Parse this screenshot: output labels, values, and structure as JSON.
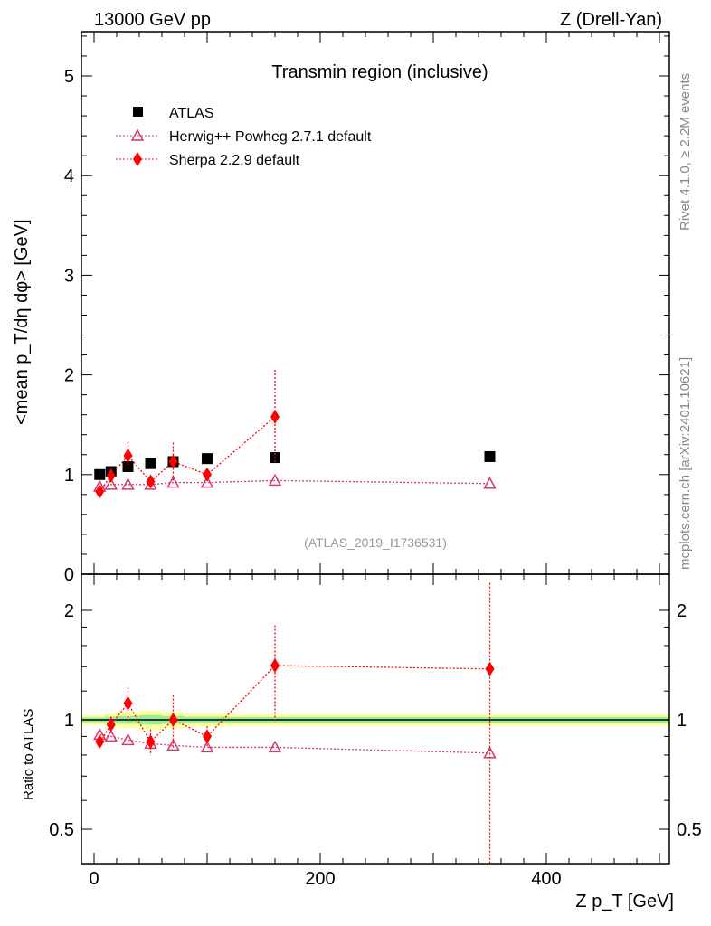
{
  "header": {
    "left": "13000 GeV pp",
    "right": "Z (Drell-Yan)"
  },
  "side": {
    "rivet": "Rivet 4.1.0, ≥ 2.2M events",
    "mcplots": "mcplots.cern.ch [arXiv:2401.10621]"
  },
  "chart_data": [
    {
      "type": "scatter",
      "title": "Transmin region (inclusive)",
      "ylabel": "<mean p_T/dη dφ> [GeV]",
      "xlim": [
        -11,
        509
      ],
      "ylim": [
        0,
        5.44
      ],
      "yticks": [
        "0",
        "1",
        "2",
        "3",
        "4",
        "5"
      ],
      "analysis": "(ATLAS_2019_I1736531)",
      "x": [
        5,
        15,
        30,
        50,
        70,
        100,
        160,
        350
      ],
      "series": [
        {
          "name": "ATLAS",
          "color": "#000000",
          "values": [
            1.0,
            1.03,
            1.08,
            1.11,
            1.13,
            1.16,
            1.17,
            1.18
          ]
        },
        {
          "name": "Herwig++ Powheg 2.7.1 default",
          "color": "#d4386c",
          "values": [
            0.88,
            0.9,
            0.9,
            0.9,
            0.92,
            0.92,
            0.94,
            0.91
          ]
        },
        {
          "name": "Sherpa 2.2.9 default",
          "color": "#ff0000",
          "values": [
            0.83,
            0.99,
            1.19,
            0.93,
            1.13,
            1.0,
            1.58,
            null
          ],
          "errors": [
            0.03,
            0.05,
            0.14,
            0.05,
            0.19,
            0.04,
            0.47,
            null
          ]
        }
      ]
    },
    {
      "type": "scatter",
      "ylabel": "Ratio to ATLAS",
      "xlabel": "Z p_T [GeV]",
      "yscale": "log",
      "ylim": [
        0.4,
        2.52
      ],
      "yticks": [
        "0.5",
        "1",
        "2"
      ],
      "xticks": [
        "0",
        "200",
        "400"
      ],
      "x": [
        5,
        15,
        30,
        50,
        70,
        100,
        160,
        350
      ],
      "series": [
        {
          "name": "Herwig++ Powheg 2.7.1 default",
          "values": [
            0.91,
            0.9,
            0.88,
            0.86,
            0.85,
            0.84,
            0.84,
            0.81
          ]
        },
        {
          "name": "Sherpa 2.2.9 default",
          "values": [
            0.87,
            0.97,
            1.11,
            0.87,
            1.0,
            0.9,
            1.41,
            1.38
          ],
          "errors": [
            0.04,
            0.05,
            0.12,
            0.07,
            0.17,
            0.06,
            0.41,
            1.0
          ]
        }
      ]
    }
  ]
}
